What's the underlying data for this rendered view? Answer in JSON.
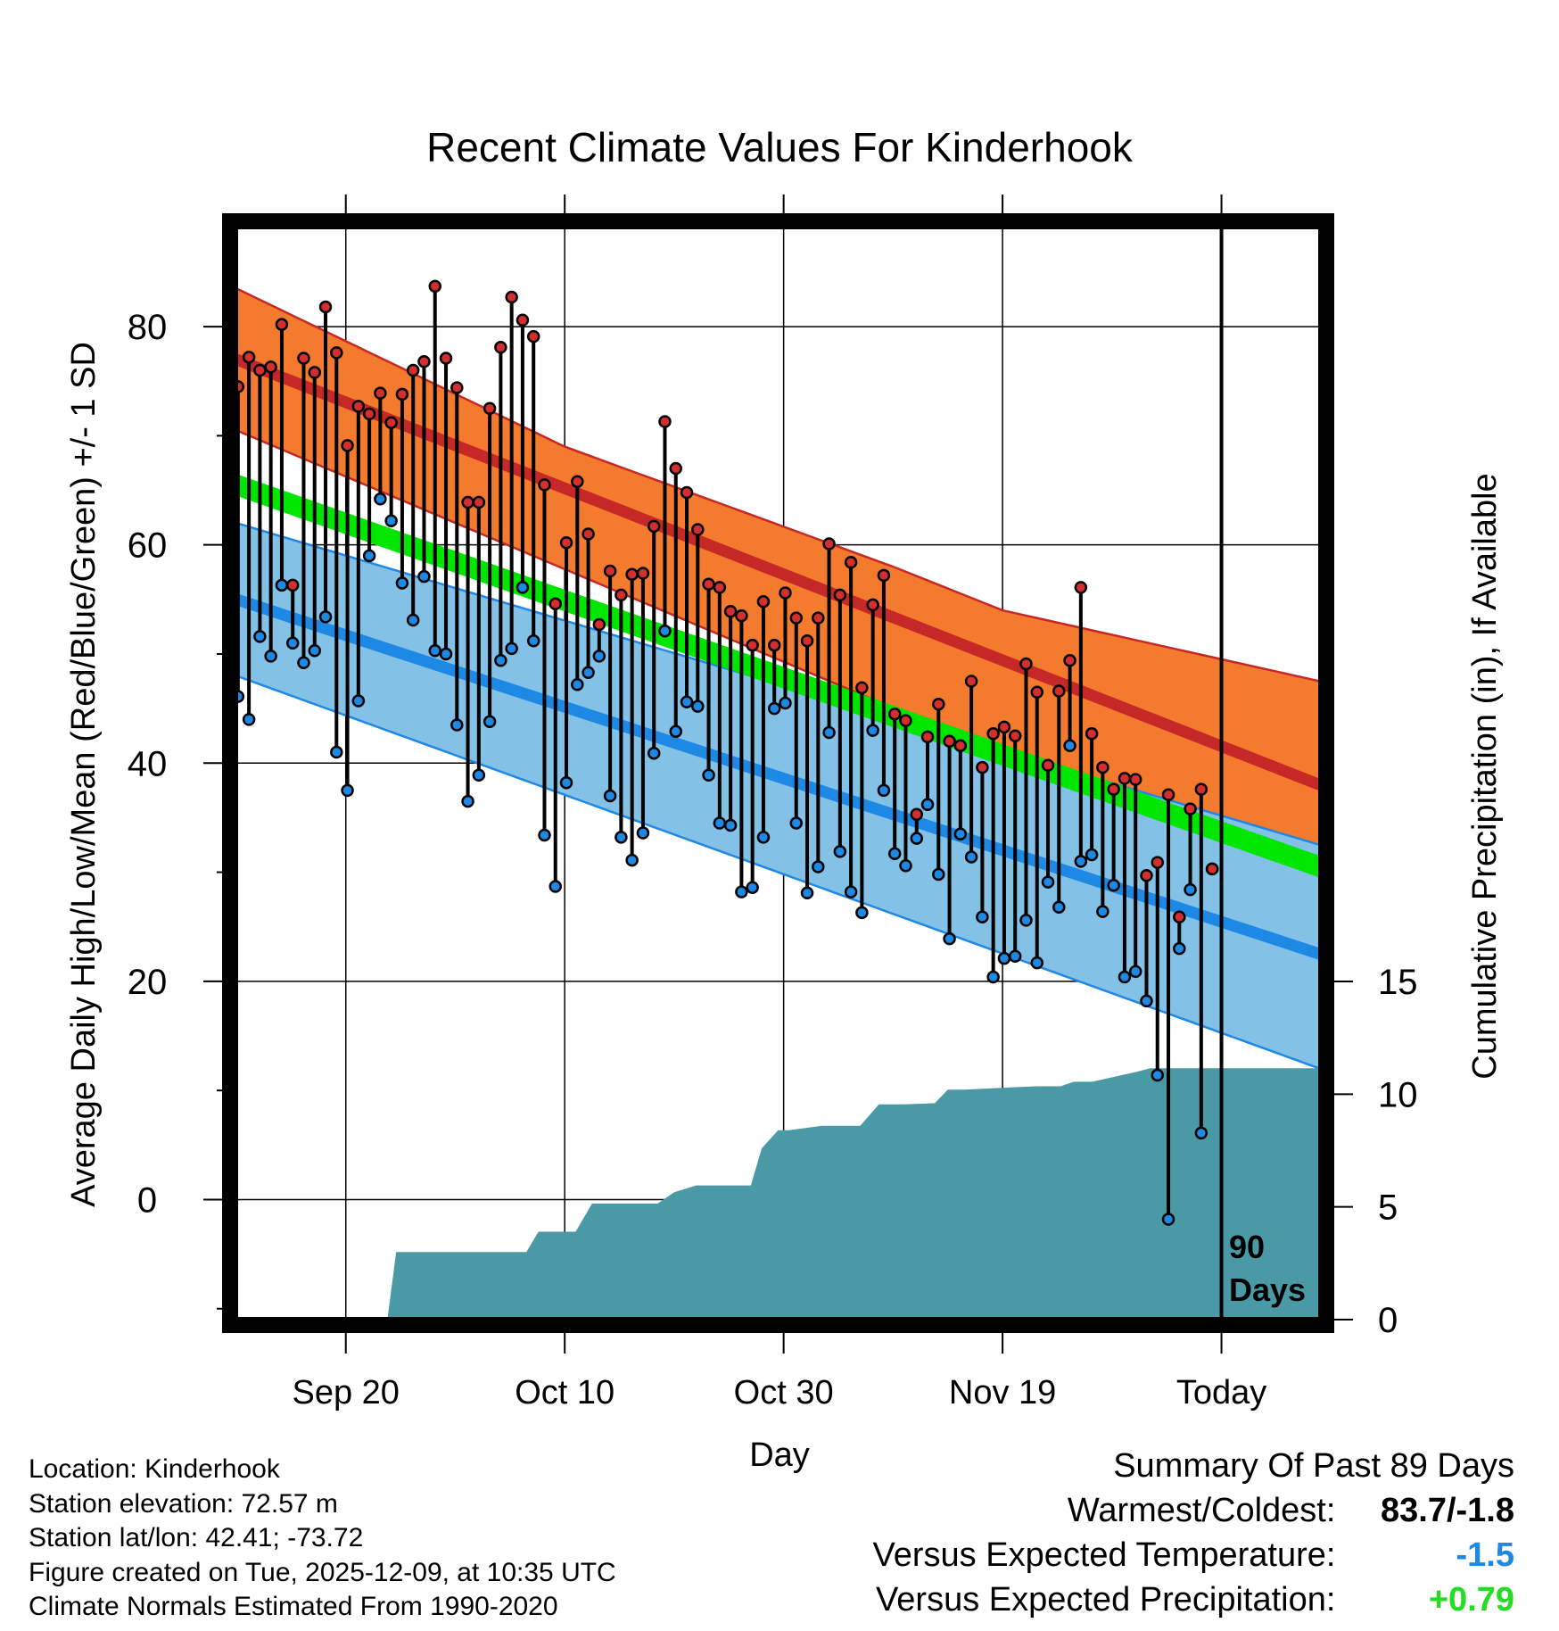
{
  "colors": {
    "high_band": "#f47a2e",
    "high_mean": "#c62828",
    "low_band": "#84c1e6",
    "low_mean": "#1e88e5",
    "mean_band": "#00e600",
    "mean_band_dark": "#8b1a1a",
    "precip": "#4a9aa5",
    "high_dot": "#d32f2f",
    "low_dot": "#1e88e5"
  },
  "chart_data": {
    "type": "line",
    "title": "Recent Climate Values For Kinderhook",
    "xlabel": "Day",
    "ylabel_left": "Average Daily High/Low/Mean (Red/Blue/Green) +/- 1 SD",
    "ylabel_right": "Cumulative Precipitation (in), If Available",
    "xlim": [
      0,
      99
    ],
    "ylim_left": [
      -11,
      89
    ],
    "ylim_right": [
      0,
      15
    ],
    "x_ticks": [
      {
        "x": 10,
        "label": "Sep 20"
      },
      {
        "x": 30,
        "label": "Oct 10"
      },
      {
        "x": 50,
        "label": "Oct 30"
      },
      {
        "x": 70,
        "label": "Nov 19"
      },
      {
        "x": 90,
        "label": "Today"
      }
    ],
    "y_ticks_left": [
      0,
      20,
      40,
      60,
      80
    ],
    "y_ticks_right": [
      0,
      5,
      10,
      15
    ],
    "today_x": 90,
    "today_label_line1": "90",
    "today_label_line2": "Days",
    "normal_high_mean": {
      "x": [
        0,
        99
      ],
      "y": [
        77,
        38
      ]
    },
    "normal_high_upper": {
      "x": [
        0,
        30,
        60,
        70,
        99
      ],
      "y": [
        83.5,
        69,
        58,
        54,
        47.5
      ]
    },
    "normal_high_lower": {
      "x": [
        0,
        99
      ],
      "y": [
        70.5,
        28.5
      ]
    },
    "normal_low_mean": {
      "x": [
        0,
        99
      ],
      "y": [
        55,
        22.5
      ]
    },
    "normal_low_upper": {
      "x": [
        0,
        99
      ],
      "y": [
        62,
        32.5
      ]
    },
    "normal_low_lower": {
      "x": [
        0,
        99
      ],
      "y": [
        48,
        12
      ]
    },
    "normal_mean_band": {
      "x": [
        0,
        99
      ],
      "y_upper": [
        66.5,
        31.5
      ],
      "y_lower": [
        64.5,
        29.5
      ]
    },
    "observed": {
      "high": [
        74.5,
        77.2,
        76,
        76.3,
        80.2,
        56.3,
        77.1,
        75.8,
        81.8,
        77.6,
        69.1,
        72.7,
        72,
        73.9,
        71.2,
        73.8,
        76,
        76.8,
        83.7,
        77.1,
        74.4,
        63.9,
        63.9,
        72.5,
        78.1,
        82.7,
        80.6,
        79.1,
        65.5,
        54.6,
        60.2,
        65.8,
        61,
        52.7,
        57.6,
        55.4,
        57.3,
        57.4,
        61.7,
        71.3,
        67,
        64.8,
        61.4,
        56.4,
        56.1,
        53.9,
        53.5,
        50.8,
        54.8,
        50.8,
        55.6,
        53.3,
        51.2,
        53.3,
        60.1,
        55.4,
        58.4,
        46.9,
        54.5,
        57.2,
        44.5,
        43.9,
        35.3,
        42.4,
        45.4,
        42,
        41.6,
        47.5,
        39.6,
        42.7,
        43.3,
        42.5,
        49.1,
        46.5,
        39.8,
        46.6,
        49.4,
        56.1,
        42.7,
        39.6,
        37.6,
        38.6,
        38.5,
        29.7,
        30.9,
        37.1,
        25.9,
        35.8,
        37.6,
        30.3
      ],
      "low": [
        46.1,
        44,
        51.6,
        49.8,
        56.3,
        51,
        49.2,
        50.3,
        53.4,
        41,
        37.5,
        45.7,
        59,
        64.2,
        62.2,
        56.5,
        53.1,
        57.1,
        50.3,
        50,
        43.5,
        36.5,
        38.9,
        43.8,
        49.4,
        50.5,
        56.1,
        51.2,
        33.4,
        28.7,
        38.2,
        47.2,
        48.3,
        49.8,
        37,
        33.2,
        31.1,
        33.6,
        40.9,
        52.1,
        42.9,
        45.6,
        45.2,
        38.9,
        34.5,
        34.3,
        28.2,
        28.6,
        33.2,
        45,
        45.5,
        34.5,
        28.1,
        30.5,
        42.8,
        31.9,
        28.2,
        26.3,
        43,
        37.5,
        31.7,
        30.6,
        33.1,
        36.2,
        29.8,
        23.9,
        33.5,
        31.4,
        25.9,
        20.4,
        22.1,
        22.3,
        25.6,
        21.7,
        29.1,
        26.8,
        41.6,
        31,
        31.6,
        26.4,
        28.8,
        20.4,
        20.9,
        18.2,
        11.4,
        -1.8,
        23,
        28.4,
        6.1,
        30.3
      ]
    },
    "precip_cumulative": {
      "x": [
        0,
        13.8,
        14.6,
        26.5,
        27.6,
        31,
        32.5,
        38.5,
        40,
        42,
        47,
        48,
        49.5,
        50.5,
        52,
        53.5,
        57,
        58.7,
        61,
        63.8,
        65,
        66.5,
        73,
        75.3,
        76.5,
        78.2,
        82.3,
        83.5,
        99
      ],
      "y": [
        0,
        0,
        3.0,
        3.0,
        3.9,
        3.9,
        5.15,
        5.15,
        5.65,
        5.95,
        5.95,
        7.6,
        8.4,
        8.4,
        8.5,
        8.6,
        8.6,
        9.55,
        9.55,
        9.6,
        10.2,
        10.2,
        10.35,
        10.35,
        10.55,
        10.55,
        11.0,
        11.15,
        11.15
      ]
    }
  },
  "info": {
    "location": "Location: Kinderhook",
    "elevation": "Station elevation: 72.57 m",
    "latlon": "Station lat/lon: 42.41; -73.72",
    "created": "Figure created on Tue, 2025-12-09, at 10:35 UTC",
    "normals": "Climate Normals Estimated From 1990-2020"
  },
  "summary": {
    "heading": "Summary Of Past 89 Days",
    "warm_cold_label": "Warmest/Coldest:",
    "warm_cold_value": "83.7/-1.8",
    "temp_label": "Versus Expected Temperature:",
    "temp_value": "-1.5",
    "temp_color": "#1e88e5",
    "precip_label": "Versus Expected Precipitation:",
    "precip_value": "+0.79",
    "precip_color": "#22dd22"
  }
}
